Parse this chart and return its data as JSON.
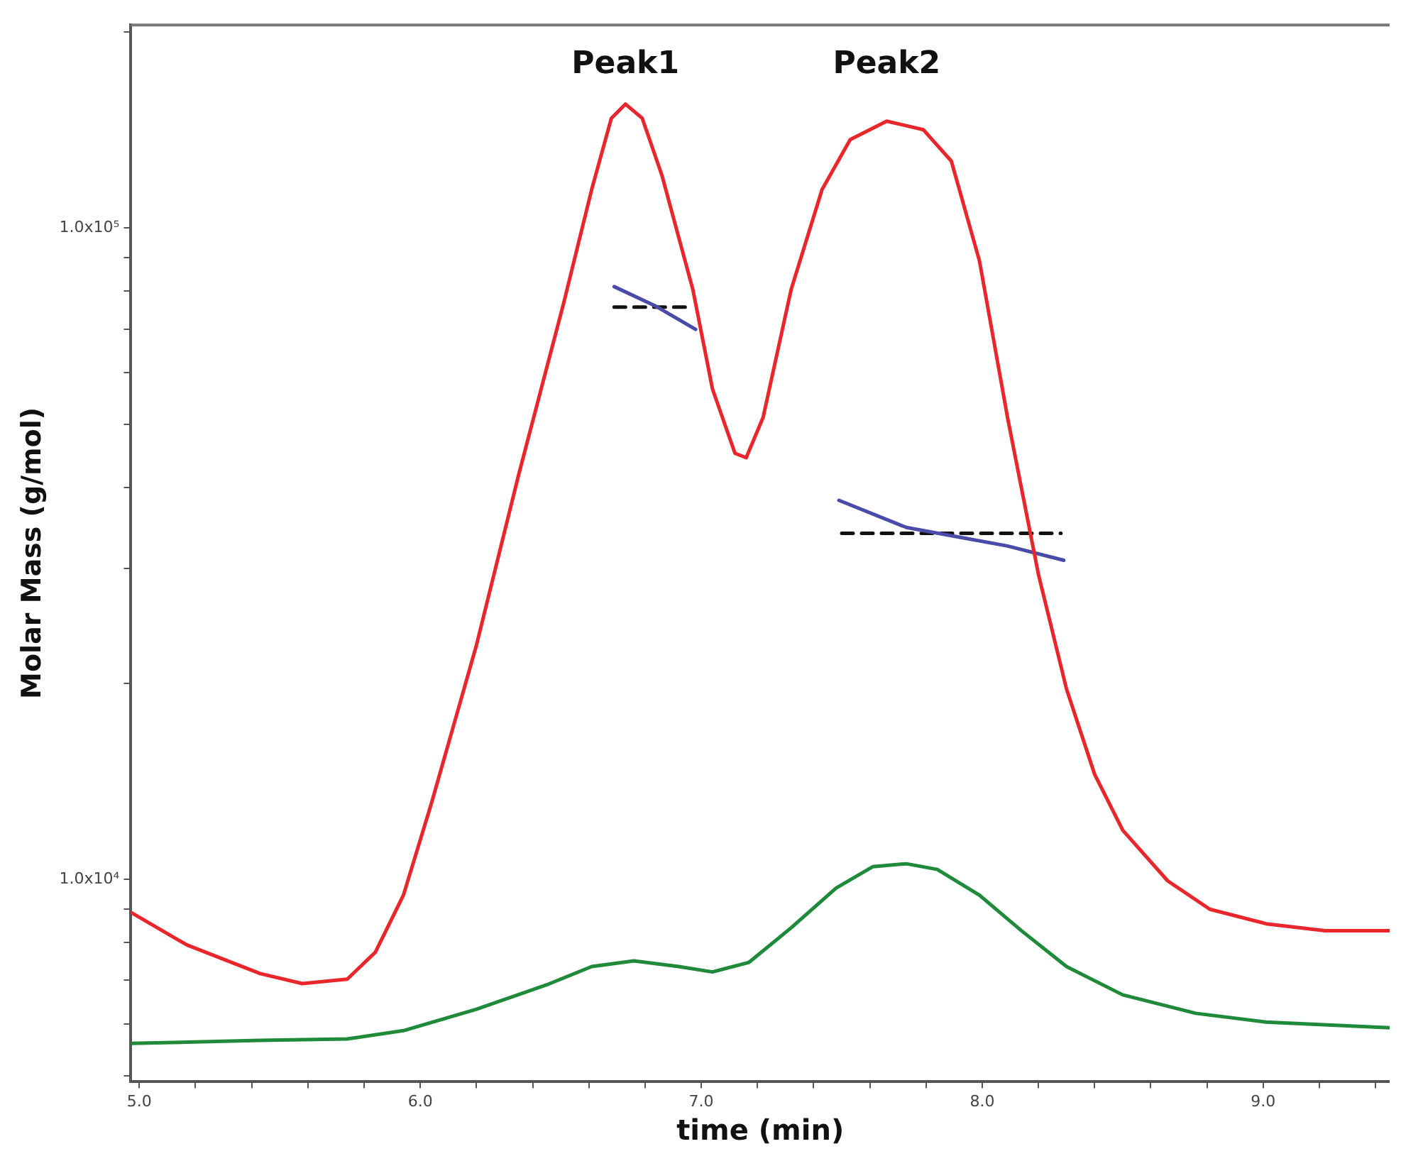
{
  "chart_data": {
    "type": "line",
    "xlabel": "time (min)",
    "ylabel": "Molar Mass (g/mol)",
    "log": "y",
    "grid": false,
    "legend": false,
    "marker": "none",
    "xlim": [
      4.97,
      9.45
    ],
    "ylim": [
      4900,
      205000
    ],
    "xticks": [
      {
        "value": 5,
        "label": "5.0"
      },
      {
        "value": 5.2,
        "label": null
      },
      {
        "value": 5.4,
        "label": null
      },
      {
        "value": 5.6,
        "label": null
      },
      {
        "value": 5.8,
        "label": null
      },
      {
        "value": 6,
        "label": "6.0"
      },
      {
        "value": 6.2,
        "label": null
      },
      {
        "value": 6.4,
        "label": null
      },
      {
        "value": 6.6,
        "label": null
      },
      {
        "value": 6.8,
        "label": null
      },
      {
        "value": 7,
        "label": "7.0"
      },
      {
        "value": 7.2,
        "label": null
      },
      {
        "value": 7.4,
        "label": null
      },
      {
        "value": 7.6,
        "label": null
      },
      {
        "value": 7.8,
        "label": null
      },
      {
        "value": 8,
        "label": "8.0"
      },
      {
        "value": 8.2,
        "label": null
      },
      {
        "value": 8.4,
        "label": null
      },
      {
        "value": 8.6,
        "label": null
      },
      {
        "value": 8.8,
        "label": null
      },
      {
        "value": 9,
        "label": "9.0"
      },
      {
        "value": 9.2,
        "label": null
      },
      {
        "value": 9.4,
        "label": null
      }
    ],
    "yticks": [
      {
        "value": 5000,
        "label": null
      },
      {
        "value": 6000,
        "label": null
      },
      {
        "value": 7000,
        "label": null
      },
      {
        "value": 8000,
        "label": null
      },
      {
        "value": 9000,
        "label": null
      },
      {
        "value": 10000,
        "label": "1.0x10⁴"
      },
      {
        "value": 20000,
        "label": null
      },
      {
        "value": 30000,
        "label": null
      },
      {
        "value": 40000,
        "label": null
      },
      {
        "value": 50000,
        "label": null
      },
      {
        "value": 60000,
        "label": null
      },
      {
        "value": 70000,
        "label": null
      },
      {
        "value": 80000,
        "label": null
      },
      {
        "value": 90000,
        "label": null
      },
      {
        "value": 100000,
        "label": "1.0x10⁵"
      },
      {
        "value": 200000,
        "label": null
      }
    ],
    "annotations": [
      "Peak1",
      "Peak2"
    ],
    "series": [
      {
        "type": "line",
        "color": "#e8262b",
        "line_style": "solid",
        "x": [
          4.97,
          5.17,
          5.43,
          5.58,
          5.74,
          5.84,
          5.94,
          6.04,
          6.2,
          6.35,
          6.51,
          6.61,
          6.68,
          6.73,
          6.79,
          6.86,
          6.97,
          7.04,
          7.12,
          7.16,
          7.22,
          7.32,
          7.43,
          7.53,
          7.66,
          7.79,
          7.89,
          7.99,
          8.09,
          8.2,
          8.3,
          8.4,
          8.5,
          8.66,
          8.81,
          9.01,
          9.22,
          9.45
        ],
        "values": [
          8900,
          7930,
          7170,
          6920,
          7030,
          7730,
          9460,
          13100,
          22900,
          41800,
          76600,
          114600,
          147400,
          155000,
          147400,
          120500,
          80500,
          56600,
          45100,
          44400,
          51200,
          80500,
          114600,
          136700,
          145900,
          141600,
          126700,
          89100,
          51200,
          29400,
          19600,
          14500,
          11900,
          9950,
          9000,
          8550,
          8340,
          8340
        ]
      },
      {
        "type": "line",
        "color": "#1f8a3a",
        "line_style": "solid",
        "x": [
          4.97,
          5.43,
          5.74,
          5.94,
          6.2,
          6.45,
          6.61,
          6.76,
          6.92,
          7.04,
          7.17,
          7.32,
          7.48,
          7.61,
          7.73,
          7.84,
          7.99,
          8.14,
          8.3,
          8.5,
          8.76,
          9.01,
          9.45
        ],
        "values": [
          5600,
          5660,
          5690,
          5860,
          6320,
          6890,
          7350,
          7500,
          7350,
          7210,
          7460,
          8430,
          9700,
          10460,
          10570,
          10360,
          9460,
          8340,
          7350,
          6650,
          6230,
          6040,
          5920
        ]
      },
      {
        "type": "line",
        "color": "#4a4aa8",
        "line_style": "solid",
        "x": [
          6.69,
          6.84,
          6.98
        ],
        "values": [
          81300,
          75800,
          69900
        ]
      },
      {
        "type": "line",
        "color": "#4a4aa8",
        "line_style": "solid",
        "x": [
          7.49,
          7.73,
          8.09,
          8.29
        ],
        "values": [
          38200,
          34700,
          32500,
          30900
        ]
      },
      {
        "type": "line",
        "color": "#111111",
        "line_style": "dashed",
        "x": [
          6.69,
          6.97
        ],
        "values": [
          75600,
          75600
        ]
      },
      {
        "type": "line",
        "color": "#111111",
        "line_style": "dashed",
        "x": [
          7.5,
          8.28
        ],
        "values": [
          34000,
          34000
        ]
      }
    ]
  }
}
